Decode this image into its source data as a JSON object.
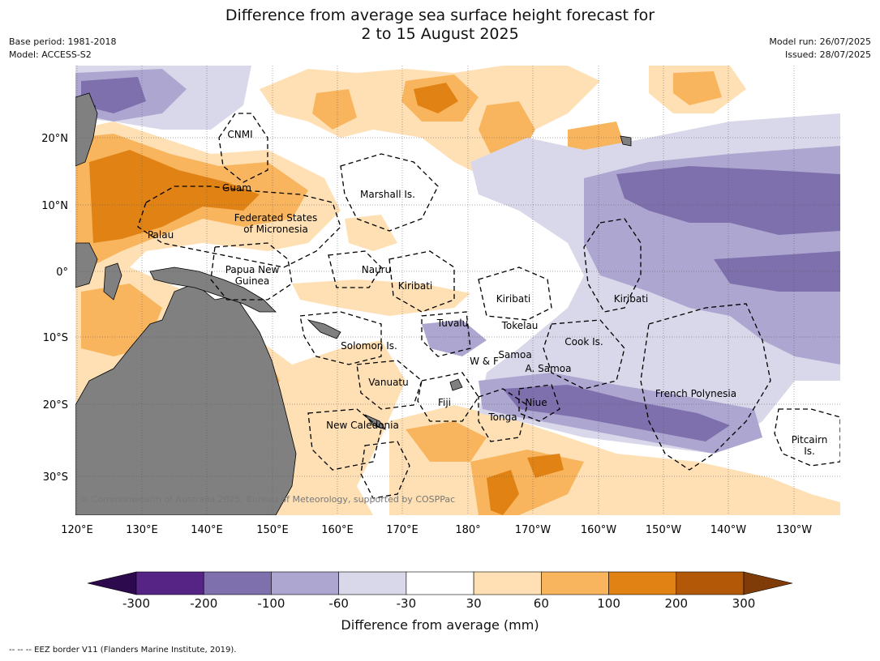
{
  "header": {
    "title_line1": "Difference from average sea surface height forecast for",
    "title_line2": "2 to 15 August 2025",
    "base_period": "Base period: 1981-2018",
    "model": "Model: ACCESS-S2",
    "model_run": "Model run: 26/07/2025",
    "issued": "Issued: 28/07/2025"
  },
  "map": {
    "lon_labels": [
      "120°E",
      "130°E",
      "140°E",
      "150°E",
      "160°E",
      "170°E",
      "180°",
      "170°W",
      "160°W",
      "150°W",
      "140°W",
      "130°W"
    ],
    "lat_labels": [
      "20°N",
      "10°N",
      "0°",
      "10°S",
      "20°S",
      "30°S"
    ],
    "regions": [
      {
        "name": "CNMI",
        "lines": [
          "CNMI"
        ]
      },
      {
        "name": "Guam",
        "lines": [
          "Guam"
        ]
      },
      {
        "name": "Marshall Is.",
        "lines": [
          "Marshall Is."
        ]
      },
      {
        "name": "Federated States of Micronesia",
        "lines": [
          "Federated States",
          "of Micronesia"
        ]
      },
      {
        "name": "Palau",
        "lines": [
          "Palau"
        ]
      },
      {
        "name": "Papua New Guinea",
        "lines": [
          "Papua New",
          "Guinea"
        ]
      },
      {
        "name": "Nauru",
        "lines": [
          "Nauru"
        ]
      },
      {
        "name": "Kiribati west",
        "lines": [
          "Kiribati"
        ]
      },
      {
        "name": "Kiribati central",
        "lines": [
          "Kiribati"
        ]
      },
      {
        "name": "Kiribati east",
        "lines": [
          "Kiribati"
        ]
      },
      {
        "name": "Tuvalu",
        "lines": [
          "Tuvalu"
        ]
      },
      {
        "name": "Tokelau",
        "lines": [
          "Tokelau"
        ]
      },
      {
        "name": "Solomon Is.",
        "lines": [
          "Solomon Is."
        ]
      },
      {
        "name": "Samoa",
        "lines": [
          "Samoa"
        ]
      },
      {
        "name": "W & F",
        "lines": [
          "W & F"
        ]
      },
      {
        "name": "A. Samoa",
        "lines": [
          "A. Samoa"
        ]
      },
      {
        "name": "Cook Is.",
        "lines": [
          "Cook Is."
        ]
      },
      {
        "name": "Vanuatu",
        "lines": [
          "Vanuatu"
        ]
      },
      {
        "name": "Fiji",
        "lines": [
          "Fiji"
        ]
      },
      {
        "name": "Niue",
        "lines": [
          "Niue"
        ]
      },
      {
        "name": "Tonga",
        "lines": [
          "Tonga"
        ]
      },
      {
        "name": "French Polynesia",
        "lines": [
          "French Polynesia"
        ]
      },
      {
        "name": "New Caledonia",
        "lines": [
          "New Caledonia"
        ]
      },
      {
        "name": "Pitcairn Is.",
        "lines": [
          "Pitcairn",
          "Is."
        ]
      }
    ],
    "copyright": "© Commonwealth of Australia 2025, Bureau of Meteorology, supported by COSPPac",
    "land_color": "#808080"
  },
  "colorbar": {
    "ticks": [
      "-300",
      "-200",
      "-100",
      "-60",
      "-30",
      "30",
      "60",
      "100",
      "200",
      "300"
    ],
    "colors": [
      "#2d0a4e",
      "#562485",
      "#7e6fad",
      "#ada6d0",
      "#d8d8ea",
      "#ffffff",
      "#fee0b4",
      "#f9b55e",
      "#e08214",
      "#b35806",
      "#7f3b08"
    ],
    "label": "Difference from average (mm)"
  },
  "footer": "--  --  -- EEZ border V11 (Flanders Marine Institute, 2019)."
}
